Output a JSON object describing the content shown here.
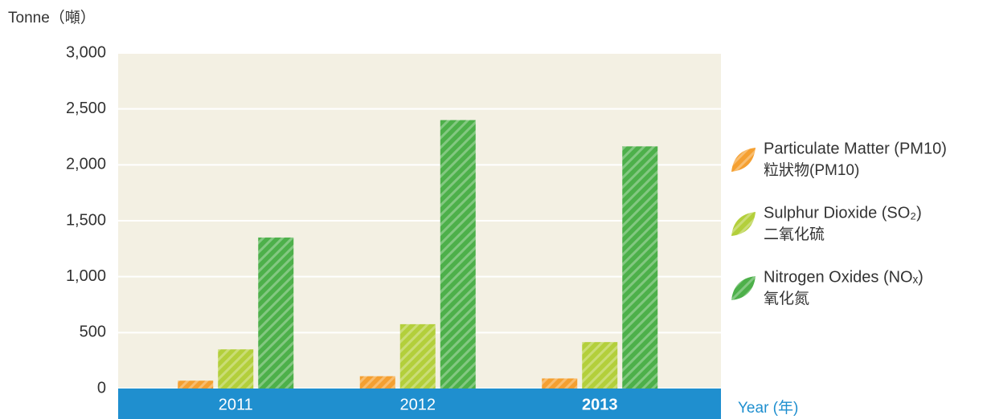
{
  "chart_data": {
    "type": "bar",
    "y_axis_label": "Tonne（噸）",
    "x_axis_label": "Year (年)",
    "categories": [
      "2011",
      "2012",
      "2013"
    ],
    "highlight_index": 2,
    "series": [
      {
        "name": "Particulate Matter (PM10)",
        "name_zh": "粒狀物(PM10)",
        "color": "#f5a031",
        "values": [
          70,
          110,
          90
        ]
      },
      {
        "name": "Sulphur Dioxide (SO₂)",
        "name_zh": "二氧化硫",
        "color": "#b3cf3b",
        "values": [
          350,
          575,
          415
        ]
      },
      {
        "name": "Nitrogen Oxides (NOₓ)",
        "name_zh": "氧化氮",
        "color": "#4db04a",
        "values": [
          1350,
          2400,
          2165
        ]
      }
    ],
    "ylim": [
      0,
      3000
    ],
    "yticks": [
      0,
      500,
      {
        "value": 1000,
        "label": "1,000"
      },
      {
        "value": 1500,
        "label": "1,500"
      },
      {
        "value": 2000,
        "label": "2,000"
      },
      {
        "value": 2500,
        "label": "2,500"
      },
      {
        "value": 3000,
        "label": "3,000"
      }
    ],
    "grid": true,
    "plot_background": "#f3f0e3",
    "axis_band_color": "#1f8fcf",
    "legend": "right"
  }
}
